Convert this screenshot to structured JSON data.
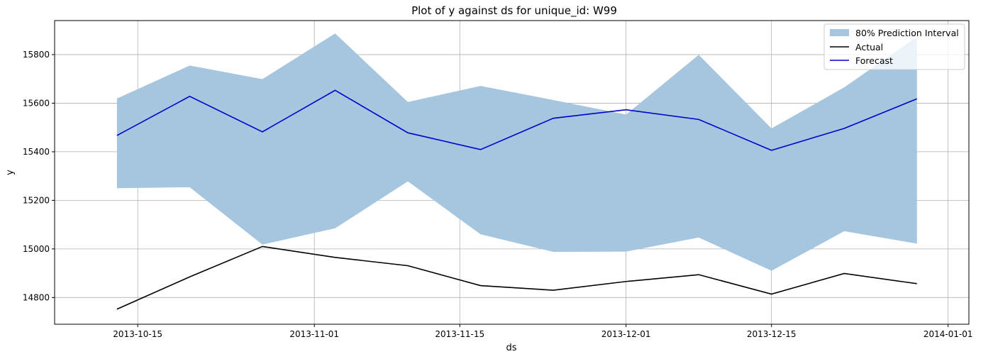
{
  "chart_data": {
    "type": "line",
    "title": "Plot of y against ds for unique_id: W99",
    "xlabel": "ds",
    "ylabel": "y",
    "x": [
      "2013-10-13",
      "2013-10-20",
      "2013-10-27",
      "2013-11-03",
      "2013-11-10",
      "2013-11-17",
      "2013-11-24",
      "2013-12-01",
      "2013-12-08",
      "2013-12-15",
      "2013-12-22",
      "2013-12-29"
    ],
    "series": [
      {
        "name": "Actual",
        "color": "#000000",
        "values": [
          14752,
          14885,
          15010,
          14965,
          14931,
          14849,
          14830,
          14866,
          14894,
          14814,
          14899,
          14857
        ]
      },
      {
        "name": "Forecast",
        "color": "#0000cc",
        "values": [
          15467,
          15628,
          15482,
          15653,
          15478,
          15409,
          15538,
          15573,
          15533,
          15406,
          15496,
          15618
        ]
      }
    ],
    "interval": {
      "name": "80% Prediction Interval",
      "color": "#a6c5de",
      "lower": [
        15250,
        15254,
        15018,
        15085,
        15278,
        15060,
        14988,
        14989,
        15047,
        14910,
        15073,
        15022
      ],
      "upper": [
        15619,
        15755,
        15699,
        15887,
        15605,
        15671,
        15613,
        15553,
        15799,
        15496,
        15665,
        15873
      ]
    },
    "xlim": [
      "2013-10-07",
      "2014-01-03"
    ],
    "ylim": [
      14690,
      15940
    ],
    "x_ticks": [
      "2013-10-15",
      "2013-11-01",
      "2013-11-15",
      "2013-12-01",
      "2013-12-15",
      "2014-01-01"
    ],
    "y_ticks": [
      14800,
      15000,
      15200,
      15400,
      15600,
      15800
    ],
    "grid": true,
    "legend_position": "top-right"
  }
}
